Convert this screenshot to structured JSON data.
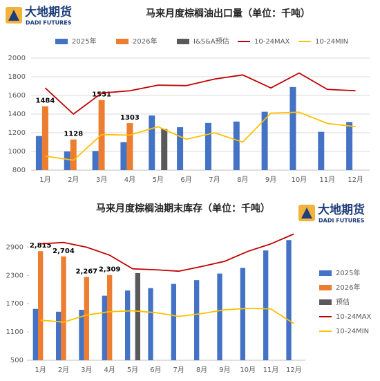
{
  "logo": {
    "name": "大地期货",
    "subtitle": "DADI FUTURES"
  },
  "chart_data": [
    {
      "type": "bar",
      "title": "马来月度棕榈油出口量（单位：千吨）",
      "categories": [
        "1月",
        "2月",
        "3月",
        "4月",
        "5月",
        "6月",
        "7月",
        "8月",
        "9月",
        "10月",
        "11月",
        "12月"
      ],
      "ylim": [
        800,
        2000
      ],
      "yticks": [
        800,
        1000,
        1200,
        1400,
        1600,
        1800,
        2000
      ],
      "grid": true,
      "legend": "top",
      "series": [
        {
          "name": "2025年",
          "type": "bar",
          "color": "#4472c4",
          "values": [
            1165,
            1000,
            1005,
            1100,
            1385,
            1260,
            1305,
            1320,
            1425,
            1690,
            1210,
            1315
          ]
        },
        {
          "name": "2026年",
          "type": "bar",
          "color": "#ed7d31",
          "values": [
            1484,
            1128,
            1551,
            1303,
            null,
            null,
            null,
            null,
            null,
            null,
            null,
            null
          ],
          "show_labels": true
        },
        {
          "name": "I&S&A预估",
          "type": "bar",
          "color": "#595959",
          "values": [
            null,
            null,
            null,
            null,
            1240,
            null,
            null,
            null,
            null,
            null,
            null,
            null
          ]
        },
        {
          "name": "10-24MAX",
          "type": "line",
          "color": "#c00000",
          "values": [
            1680,
            1400,
            1625,
            1650,
            1710,
            1705,
            1775,
            1820,
            1680,
            1840,
            1665,
            1650
          ]
        },
        {
          "name": "10-24MIN",
          "type": "line",
          "color": "#ffc000",
          "values": [
            950,
            905,
            1180,
            1175,
            1265,
            1130,
            1200,
            1100,
            1410,
            1420,
            1300,
            1265
          ]
        }
      ]
    },
    {
      "type": "bar",
      "title": "马来月度棕榈油期末库存（单位：千吨）",
      "categories": [
        "1月",
        "2月",
        "3月",
        "4月",
        "5月",
        "6月",
        "7月",
        "8月",
        "9月",
        "10月",
        "11月",
        "12月"
      ],
      "ylim": [
        500,
        3200
      ],
      "yticks": [
        500,
        1100,
        1700,
        2300,
        2900
      ],
      "grid": false,
      "legend": "right",
      "series": [
        {
          "name": "2025年",
          "type": "bar",
          "color": "#4472c4",
          "values": [
            1590,
            1530,
            1570,
            1870,
            1980,
            2030,
            2120,
            2200,
            2340,
            2460,
            2830,
            3050
          ]
        },
        {
          "name": "2026年",
          "type": "bar",
          "color": "#ed7d31",
          "values": [
            2815,
            2704,
            2267,
            2309,
            null,
            null,
            null,
            null,
            null,
            null,
            null,
            null
          ],
          "value_labels": [
            "2,815",
            "2,704",
            "2,267",
            "2,309",
            null,
            null,
            null,
            null,
            null,
            null,
            null,
            null
          ],
          "show_labels": true
        },
        {
          "name": "预估",
          "type": "bar",
          "color": "#595959",
          "values": [
            null,
            null,
            null,
            null,
            2350,
            null,
            null,
            null,
            null,
            null,
            null,
            null
          ]
        },
        {
          "name": "10-24MAX",
          "type": "line",
          "color": "#c00000",
          "values": [
            2970,
            3000,
            2900,
            2730,
            2440,
            2420,
            2390,
            2490,
            2600,
            2810,
            2970,
            3180
          ]
        },
        {
          "name": "10-24MIN",
          "type": "line",
          "color": "#ffc000",
          "values": [
            1350,
            1310,
            1460,
            1530,
            1550,
            1510,
            1430,
            1490,
            1570,
            1600,
            1590,
            1280
          ]
        }
      ]
    }
  ]
}
